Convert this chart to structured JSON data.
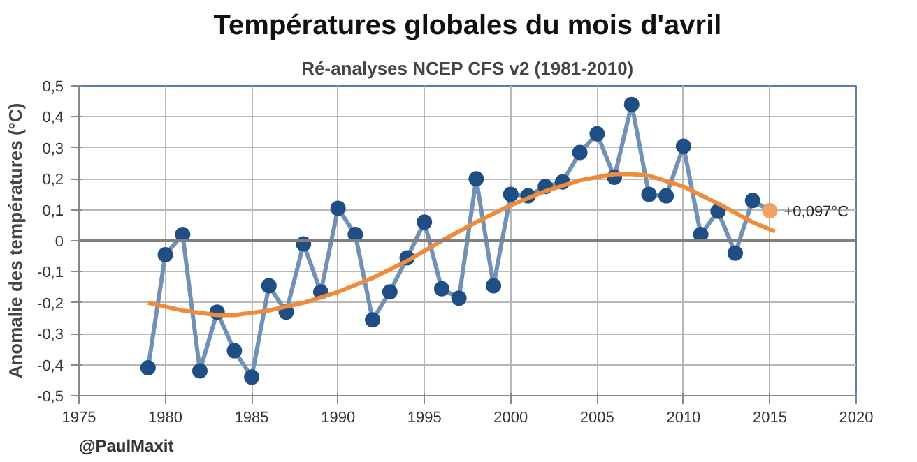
{
  "chart_data": {
    "type": "line",
    "title": "Températures globales du mois d'avril",
    "subtitle": "Ré-analyses NCEP CFS v2 (1981-2010)",
    "ylabel": "Anomalie des températures (°C)",
    "series": [
      {
        "color": "#7191b6",
        "marker": "circle",
        "x": [
          1979,
          1980,
          1981,
          1982,
          1983,
          1984,
          1985,
          1986,
          1987,
          1988,
          1989,
          1990,
          1991,
          1992,
          1993,
          1994,
          1995,
          1996,
          1997,
          1998,
          1999,
          2000,
          2001,
          2002,
          2003,
          2004,
          2005,
          2006,
          2007,
          2008,
          2009,
          2010,
          2011,
          2012,
          2013,
          2014,
          2015
        ],
        "values": [
          -0.41,
          -0.045,
          0.02,
          -0.42,
          -0.23,
          -0.355,
          -0.44,
          -0.145,
          -0.23,
          -0.01,
          -0.165,
          0.105,
          0.02,
          -0.255,
          -0.165,
          -0.055,
          0.06,
          -0.155,
          -0.185,
          0.2,
          -0.145,
          0.15,
          0.145,
          0.175,
          0.19,
          0.285,
          0.345,
          0.205,
          0.44,
          0.15,
          0.145,
          0.305,
          0.02,
          0.095,
          -0.04,
          0.13,
          0.097
        ],
        "colors": [
          "#1f4e85",
          "#1f4e85",
          "#1f4e85",
          "#1f4e85",
          "#1f4e85",
          "#1f4e85",
          "#1f4e85",
          "#1f4e85",
          "#1f4e85",
          "#1f4e85",
          "#1f4e85",
          "#1f4e85",
          "#1f4e85",
          "#1f4e85",
          "#1f4e85",
          "#1f4e85",
          "#1f4e85",
          "#1f4e85",
          "#1f4e85",
          "#1f4e85",
          "#1f4e85",
          "#1f4e85",
          "#1f4e85",
          "#1f4e85",
          "#1f4e85",
          "#1f4e85",
          "#1f4e85",
          "#1f4e85",
          "#1f4e85",
          "#1f4e85",
          "#1f4e85",
          "#1f4e85",
          "#1f4e85",
          "#1f4e85",
          "#1f4e85",
          "#1f4e85",
          "#f4a261"
        ]
      },
      {
        "color": "#ee8c3e",
        "marker": "none",
        "x": [
          1979,
          1981,
          1983,
          1984,
          1986,
          1988,
          1990,
          1992,
          1994,
          1996,
          1998,
          2000,
          2002,
          2004,
          2006,
          2007,
          2008,
          2010,
          2012,
          2014,
          2015.3
        ],
        "values": [
          -0.2,
          -0.225,
          -0.24,
          -0.24,
          -0.225,
          -0.2,
          -0.165,
          -0.12,
          -0.065,
          0.0,
          0.06,
          0.115,
          0.16,
          0.195,
          0.215,
          0.215,
          0.21,
          0.175,
          0.12,
          0.06,
          0.03
        ]
      }
    ],
    "annotations": [
      {
        "text": "+0,097°C",
        "x": 2015,
        "y": 0.097
      },
      "@PaulMaxit"
    ],
    "xlim": [
      1975,
      2020
    ],
    "xticks": [
      1975,
      1980,
      1985,
      1990,
      1995,
      2000,
      2005,
      2010,
      2015,
      2020
    ],
    "ylim": [
      -0.5,
      0.5
    ],
    "yticks": [
      {
        "value": -0.5,
        "label": "-0,5"
      },
      {
        "value": -0.4,
        "label": "-0,4"
      },
      {
        "value": -0.3,
        "label": "-0,3"
      },
      {
        "value": -0.2,
        "label": "-0,2"
      },
      {
        "value": -0.1,
        "label": "-0,1"
      },
      0,
      {
        "value": 0.1,
        "label": "0,1"
      },
      {
        "value": 0.2,
        "label": "0,2"
      },
      {
        "value": 0.3,
        "label": "0,3"
      },
      {
        "value": 0.4,
        "label": "0,4"
      },
      {
        "value": 0.5,
        "label": "0,5"
      }
    ],
    "ref_lines": [
      {
        "axis": "y",
        "value": 0,
        "color": "#808080"
      }
    ],
    "grid": true
  }
}
